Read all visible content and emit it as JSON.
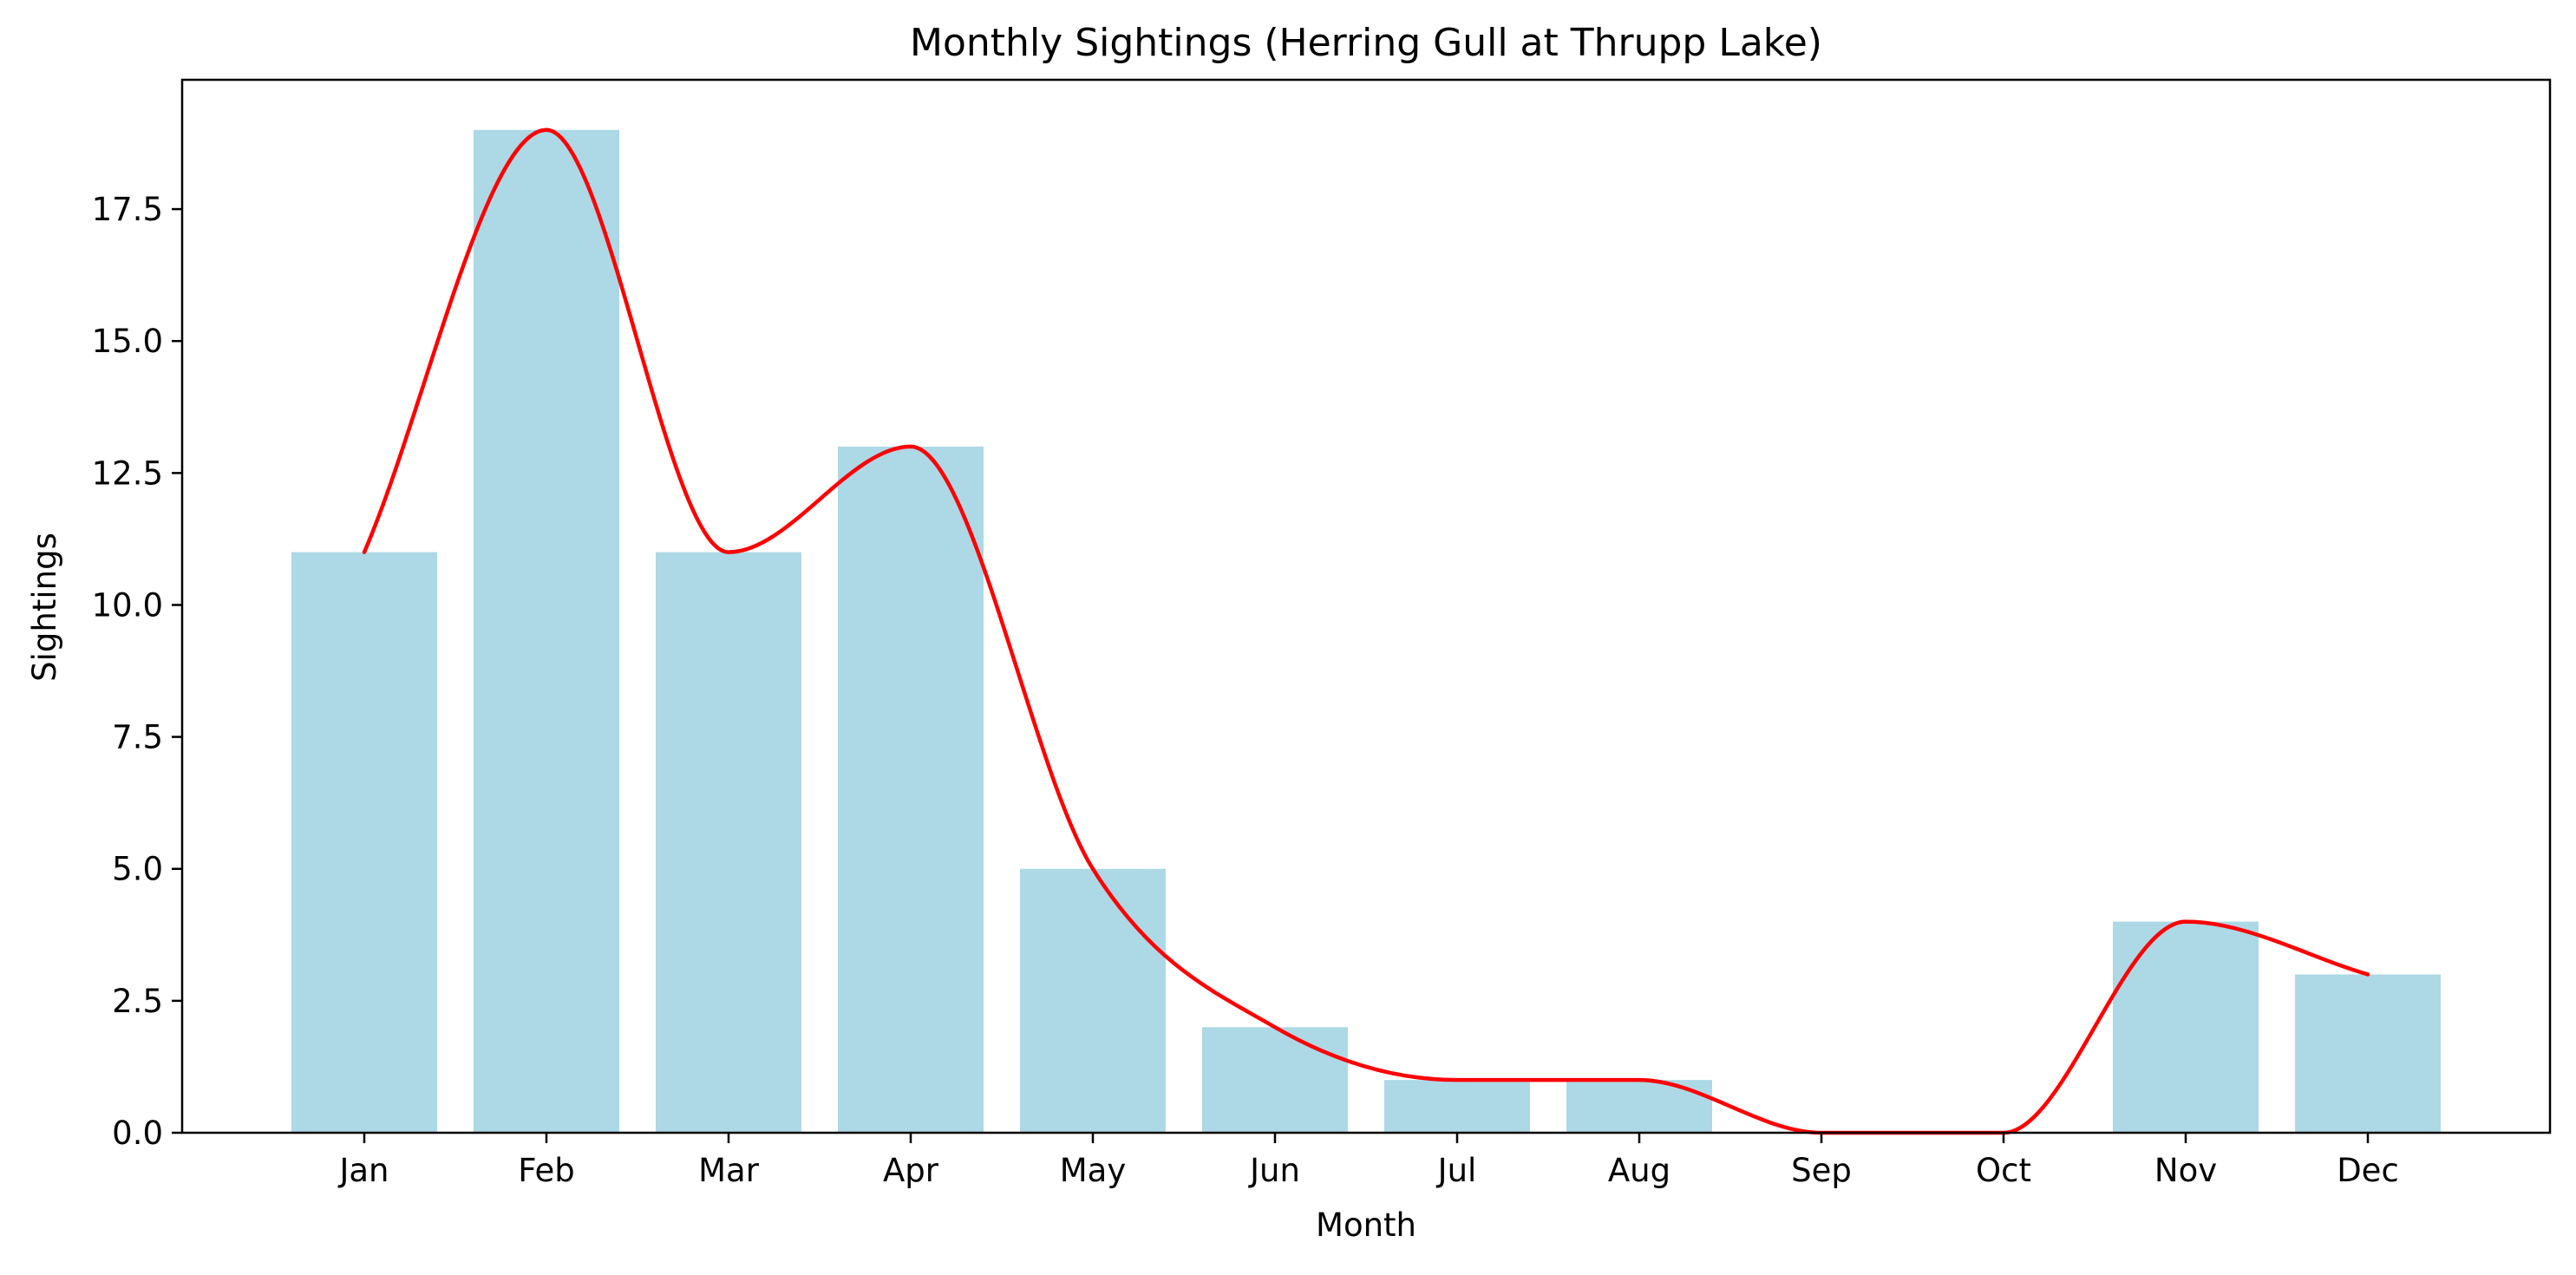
{
  "chart_data": {
    "type": "bar",
    "title": "Monthly Sightings (Herring Gull at Thrupp Lake)",
    "xlabel": "Month",
    "ylabel": "Sightings",
    "categories": [
      "Jan",
      "Feb",
      "Mar",
      "Apr",
      "May",
      "Jun",
      "Jul",
      "Aug",
      "Sep",
      "Oct",
      "Nov",
      "Dec"
    ],
    "values": [
      11,
      19,
      11,
      13,
      5,
      2,
      1,
      1,
      0,
      0,
      4,
      3
    ],
    "overlay": {
      "type": "line",
      "style": "smooth curve through bar tops",
      "values": [
        11,
        19,
        11,
        13,
        5,
        2,
        1,
        1,
        0,
        0,
        4,
        3
      ]
    },
    "ylim": [
      0,
      19.95
    ],
    "yticks": [
      "0.0",
      "2.5",
      "5.0",
      "7.5",
      "10.0",
      "12.5",
      "15.0",
      "17.5"
    ],
    "grid": false,
    "legend": "none",
    "colors": {
      "bar": "#add8e6",
      "line": "#ff0000",
      "axes": "#000000"
    }
  }
}
